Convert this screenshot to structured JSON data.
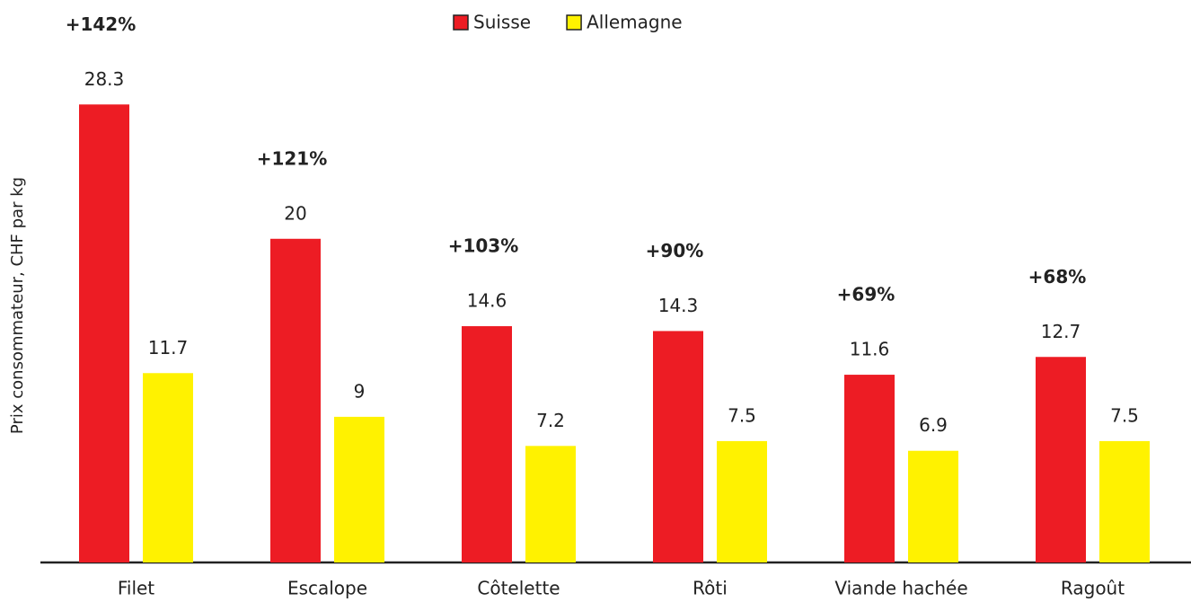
{
  "chart_data": {
    "type": "bar",
    "ylabel": "Prix consommateur, CHF par kg",
    "categories": [
      "Filet",
      "Escalope",
      "Côtelette",
      "Rôti",
      "Viande hachée",
      "Ragoût"
    ],
    "series": [
      {
        "name": "Suisse",
        "color": "#ed1c24",
        "values": [
          28.3,
          20,
          14.6,
          14.3,
          11.6,
          12.7
        ]
      },
      {
        "name": "Allemagne",
        "color": "#fff200",
        "values": [
          11.7,
          9,
          7.2,
          7.5,
          6.9,
          7.5
        ]
      }
    ],
    "annotations": [
      "+142%",
      "+121%",
      "+103%",
      "+90%",
      "+69%",
      "+68%"
    ],
    "ylim": [
      0,
      34.2
    ],
    "legend": "top"
  }
}
